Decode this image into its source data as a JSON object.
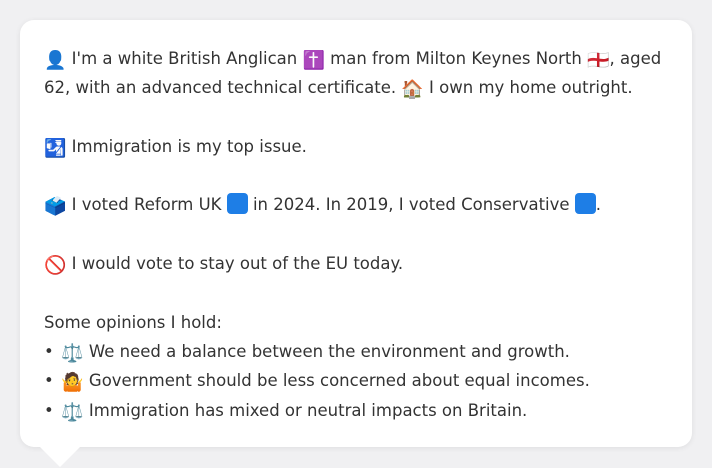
{
  "persona": {
    "identity": {
      "icon": "👤",
      "text_1": " I'm a white British Anglican ",
      "religion_icon": "✝️",
      "text_2": " man from Milton Keynes North ",
      "flag_icon": "🏴󠁧󠁢󠁥󠁮󠁧󠁿",
      "text_3": ", aged 62, with an advanced technical certificate. ",
      "home_icon": "🏠",
      "text_4": " I own my home outright."
    },
    "issue": {
      "icon": "🛂",
      "text": " Immigration is my top issue."
    },
    "votes": {
      "icon": "🗳️",
      "text_1": " I voted Reform UK ",
      "reform_color": "#1e7ee6",
      "text_2": " in 2024. In 2019, I voted Conservative ",
      "conservative_color": "#1e7ee6",
      "text_3": "."
    },
    "eu": {
      "icon": "🚫",
      "text": " I would vote to stay out of the EU today."
    },
    "opinions": {
      "heading": "Some opinions I hold:",
      "bullet": "•",
      "items": [
        {
          "icon": "⚖️",
          "text": " We need a balance between the environment and growth."
        },
        {
          "icon": "🤷",
          "text": " Government should be less concerned about equal incomes."
        },
        {
          "icon": "⚖️",
          "text": " Immigration has mixed or neutral impacts on Britain."
        }
      ]
    }
  }
}
